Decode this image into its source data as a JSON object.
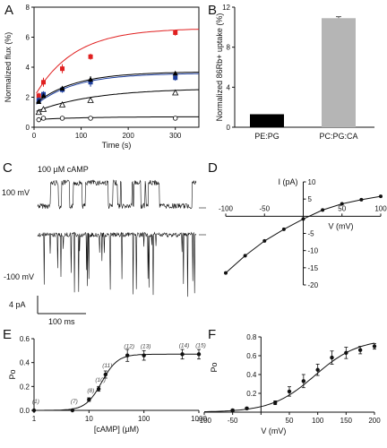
{
  "figure": {
    "panels": [
      "A",
      "B",
      "C",
      "D",
      "E",
      "F"
    ]
  },
  "chart_data": [
    {
      "panel": "A",
      "type": "scatter",
      "xlabel": "Time (s)",
      "ylabel": "Normalized flux (%)",
      "xlim": [
        0,
        350
      ],
      "ylim": [
        0,
        8
      ],
      "xticks": [
        "0",
        "100",
        "200",
        "300"
      ],
      "yticks": [
        "0",
        "2",
        "4",
        "6",
        "8"
      ],
      "series": [
        {
          "color": "#e02020",
          "marker": "square",
          "fit": [
            2.0,
            4.6,
            0.012
          ],
          "x": [
            10,
            20,
            60,
            120,
            300
          ],
          "y": [
            2.1,
            3.0,
            3.9,
            4.7,
            6.3
          ],
          "err": [
            0.2,
            0.3,
            0.3,
            0.2,
            0.2
          ]
        },
        {
          "color": "#1e3f9e",
          "marker": "square",
          "fit": [
            1.4,
            2.2,
            0.012
          ],
          "x": [
            10,
            20,
            60,
            120,
            300
          ],
          "y": [
            1.8,
            2.2,
            2.5,
            3.0,
            3.3
          ],
          "err": [
            0.2,
            0.2,
            0.2,
            0.3,
            0.2
          ]
        },
        {
          "color": "#000000",
          "marker": "triangle",
          "fit": [
            1.5,
            2.2,
            0.012
          ],
          "x": [
            10,
            20,
            60,
            120,
            300
          ],
          "y": [
            1.7,
            2.1,
            2.6,
            3.2,
            3.6
          ],
          "err": [
            0.1,
            0.1,
            0.1,
            0.2,
            0.1
          ]
        },
        {
          "color": "#000000",
          "marker": "triangle-open",
          "fit": [
            1.0,
            1.6,
            0.008
          ],
          "x": [
            10,
            20,
            60,
            120,
            300
          ],
          "y": [
            1.0,
            1.2,
            1.5,
            1.8,
            2.3
          ],
          "err": [
            0.1,
            0.1,
            0.1,
            0.1,
            0.1
          ]
        },
        {
          "color": "#000000",
          "marker": "circle-open",
          "fit": [
            0.5,
            0.2,
            0.01
          ],
          "x": [
            10,
            20,
            60,
            120,
            300
          ],
          "y": [
            0.5,
            0.6,
            0.6,
            0.6,
            0.6
          ],
          "err": [
            0,
            0,
            0,
            0,
            0
          ]
        }
      ]
    },
    {
      "panel": "B",
      "type": "bar",
      "ylabel": "Normalized 86Rb+ uptake (%)",
      "categories": [
        "PE:PG",
        "PC:PG:CA"
      ],
      "values": [
        1.3,
        10.9
      ],
      "err": [
        0,
        0.15
      ],
      "colors": [
        "#000000",
        "#b5b5b5"
      ],
      "ylim": [
        0,
        12
      ],
      "yticks": [
        "0",
        "4",
        "8",
        "12"
      ]
    },
    {
      "panel": "C",
      "type": "line",
      "annotation": "100 µM cAMP",
      "trace_labels": [
        "100 mV",
        "-100 mV"
      ],
      "scale_bar": {
        "y": "4 pA",
        "x": "100 ms"
      }
    },
    {
      "panel": "D",
      "type": "line",
      "title_y": "I (pA)",
      "xlabel": "V (mV)",
      "xlim": [
        -100,
        100
      ],
      "ylim": [
        -20,
        10
      ],
      "xticks": [
        "-100",
        "-50",
        "50",
        "100"
      ],
      "yticks": [
        "10",
        "5",
        "-5",
        "-10",
        "-15",
        "-20"
      ],
      "x": [
        -100,
        -75,
        -50,
        -25,
        0,
        25,
        50,
        75,
        100
      ],
      "y": [
        -16.5,
        -11.5,
        -7.2,
        -3.8,
        -0.8,
        1.8,
        3.6,
        4.8,
        5.8
      ]
    },
    {
      "panel": "E",
      "type": "scatter",
      "xlabel": "[cAMP] (µM)",
      "ylabel": "Po",
      "xscale": "log",
      "xlim": [
        1,
        1000
      ],
      "ylim": [
        0,
        0.6
      ],
      "xticks": [
        "1",
        "10",
        "100",
        "1000"
      ],
      "yticks": [
        "0.0",
        "0.2",
        "0.4",
        "0.6"
      ],
      "x": [
        1,
        5,
        10,
        15,
        20,
        50,
        100,
        500,
        1000
      ],
      "y": [
        0.0,
        0.0,
        0.09,
        0.18,
        0.3,
        0.46,
        0.46,
        0.47,
        0.47
      ],
      "err": [
        0,
        0,
        0.015,
        0.02,
        0.03,
        0.05,
        0.04,
        0.04,
        0.04
      ],
      "n_labels": [
        "(1)",
        "(7)",
        "(8)",
        "(10)",
        "(11)",
        "(12)",
        "(13)",
        "(14)",
        "(15)"
      ],
      "fit": {
        "max": 0.47,
        "ec50": 17,
        "hill": 3.0
      }
    },
    {
      "panel": "F",
      "type": "scatter",
      "xlabel": "V (mV)",
      "ylabel": "Po",
      "xlim": [
        -100,
        200
      ],
      "ylim": [
        0,
        0.8
      ],
      "xticks": [
        "-100",
        "-50",
        "",
        "50",
        "100",
        "150",
        "200"
      ],
      "yticks": [
        "0.8",
        "0.6",
        "0.4",
        "0.2"
      ],
      "x": [
        -50,
        -25,
        25,
        50,
        75,
        100,
        125,
        150,
        175,
        200
      ],
      "y": [
        0.02,
        0.04,
        0.1,
        0.22,
        0.33,
        0.45,
        0.58,
        0.63,
        0.66,
        0.7
      ],
      "err": [
        0.01,
        0.01,
        0.02,
        0.05,
        0.07,
        0.06,
        0.07,
        0.06,
        0.04,
        0.03
      ],
      "fit": {
        "max": 0.78,
        "v50": 95,
        "slope": 38
      }
    }
  ]
}
